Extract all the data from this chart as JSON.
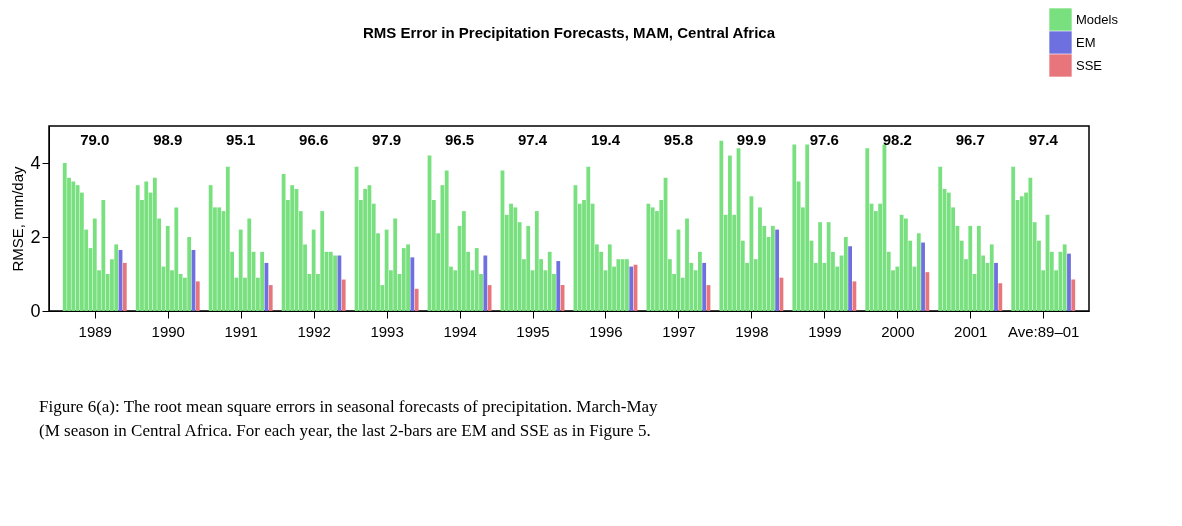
{
  "chart_data": {
    "type": "bar",
    "title": "RMS Error in Precipitation Forecasts, MAM, Central Africa",
    "ylabel": "RMSE, mm/day",
    "categories": [
      null,
      null,
      null,
      null,
      null,
      null,
      null,
      "1989",
      null,
      null,
      null,
      null,
      null,
      null,
      null,
      null,
      null,
      null,
      null,
      null,
      null,
      null,
      null,
      null,
      "1990",
      null,
      null,
      null,
      null,
      null,
      null,
      null,
      null,
      null,
      null,
      null,
      null,
      null,
      null,
      null,
      null,
      "1991",
      null,
      null,
      null,
      null,
      null,
      null,
      null,
      null,
      null,
      null,
      null,
      null,
      null,
      null,
      null,
      null,
      "1992",
      null,
      null,
      null,
      null,
      null,
      null,
      null,
      null,
      null,
      null,
      null,
      null,
      null,
      null,
      null,
      null,
      "1993",
      null,
      null,
      null,
      null,
      null,
      null,
      null,
      null,
      null,
      null,
      null,
      null,
      null,
      null,
      null,
      null,
      "1994",
      null,
      null,
      null,
      null,
      null,
      null,
      null,
      null,
      null,
      null,
      null,
      null,
      null,
      null,
      null,
      null,
      "1995",
      null,
      null,
      null,
      null,
      null,
      null,
      null,
      null,
      null,
      null,
      null,
      null,
      null,
      null,
      null,
      null,
      "1996",
      null,
      null,
      null,
      null,
      null,
      null,
      null,
      null,
      null,
      null,
      null,
      null,
      null,
      null,
      null,
      null,
      "1997",
      null,
      null,
      null,
      null,
      null,
      null,
      null,
      null,
      null,
      null,
      null,
      null,
      null,
      null,
      null,
      null,
      "1998",
      null,
      null,
      null,
      null,
      null,
      null,
      null,
      null,
      null,
      null,
      null,
      null,
      null,
      null,
      null,
      null,
      "1999",
      null,
      null,
      null,
      null,
      null,
      null,
      null,
      null,
      null,
      null,
      null,
      null,
      null,
      null,
      null,
      null,
      "2000",
      null,
      null,
      null,
      null,
      null,
      null,
      null,
      null,
      null,
      null,
      null,
      null,
      null,
      null,
      null,
      null,
      "2001",
      null,
      null,
      null,
      null,
      null,
      null,
      null,
      null,
      null,
      null,
      null,
      null,
      null,
      null,
      null,
      null,
      "Ave:89–01",
      null,
      null,
      null,
      null,
      null,
      null,
      null,
      null,
      null
    ],
    "series": [
      {
        "name": "Models",
        "color": "#78e07e",
        "values": [
          4.0,
          3.6,
          3.5,
          3.4,
          3.2,
          2.2,
          1.7,
          2.5,
          1.1,
          3.0,
          1.0,
          1.4,
          1.8,
          null,
          null,
          null,
          null,
          3.4,
          3.0,
          3.5,
          3.2,
          3.6,
          2.5,
          1.2,
          2.3,
          1.1,
          2.8,
          1.0,
          0.9,
          2.0,
          null,
          null,
          null,
          null,
          3.4,
          2.8,
          2.8,
          2.7,
          3.9,
          1.6,
          0.9,
          2.2,
          0.9,
          2.5,
          1.6,
          0.9,
          1.6,
          null,
          null,
          null,
          null,
          3.7,
          3.0,
          3.4,
          3.3,
          2.7,
          1.8,
          1.0,
          2.2,
          1.0,
          2.7,
          1.6,
          1.6,
          1.5,
          null,
          null,
          null,
          null,
          3.9,
          3.0,
          3.3,
          3.4,
          2.9,
          2.1,
          0.7,
          2.2,
          1.1,
          2.5,
          1.0,
          1.7,
          1.8,
          null,
          null,
          null,
          null,
          4.2,
          3.0,
          2.1,
          3.4,
          3.8,
          1.2,
          1.1,
          2.3,
          2.7,
          1.6,
          1.1,
          1.7,
          1.0,
          null,
          null,
          null,
          null,
          3.8,
          2.6,
          2.9,
          2.8,
          2.4,
          1.4,
          2.3,
          1.1,
          2.7,
          1.4,
          1.1,
          1.6,
          1.0,
          null,
          null,
          null,
          null,
          3.4,
          2.9,
          3.0,
          3.9,
          2.9,
          1.8,
          1.6,
          1.1,
          1.8,
          1.2,
          1.4,
          1.4,
          1.4,
          null,
          null,
          null,
          null,
          2.9,
          2.8,
          2.7,
          3.0,
          3.6,
          1.4,
          1.0,
          2.2,
          0.9,
          2.5,
          1.3,
          1.1,
          1.6,
          null,
          null,
          null,
          null,
          4.6,
          2.6,
          4.2,
          2.6,
          4.4,
          1.9,
          1.3,
          3.1,
          1.4,
          2.8,
          2.3,
          2.0,
          2.3,
          null,
          null,
          null,
          null,
          4.5,
          3.5,
          2.8,
          4.5,
          1.9,
          1.3,
          2.4,
          1.3,
          2.4,
          1.6,
          1.2,
          1.5,
          2.0,
          null,
          null,
          null,
          null,
          4.4,
          2.9,
          2.7,
          2.9,
          4.5,
          1.6,
          1.1,
          1.2,
          2.6,
          2.5,
          1.9,
          1.2,
          2.1,
          null,
          null,
          null,
          null,
          3.9,
          3.3,
          3.2,
          2.8,
          2.3,
          1.9,
          1.4,
          2.3,
          1.0,
          2.3,
          1.5,
          1.3,
          1.8,
          null,
          null,
          null,
          null,
          3.9,
          3.0,
          3.1,
          3.2,
          3.6,
          2.4,
          1.9,
          1.1,
          2.6,
          1.6,
          1.1,
          1.6,
          1.8,
          null,
          null,
          null,
          null
        ]
      },
      {
        "name": "EM",
        "color": "#6f70e0",
        "values": [
          null,
          null,
          null,
          null,
          null,
          null,
          null,
          null,
          null,
          null,
          null,
          null,
          null,
          1.65,
          null,
          null,
          null,
          null,
          null,
          null,
          null,
          null,
          null,
          null,
          null,
          null,
          null,
          null,
          null,
          null,
          1.65,
          null,
          null,
          null,
          null,
          null,
          null,
          null,
          null,
          null,
          null,
          null,
          null,
          null,
          null,
          null,
          null,
          1.3,
          null,
          null,
          null,
          null,
          null,
          null,
          null,
          null,
          null,
          null,
          null,
          null,
          null,
          null,
          null,
          null,
          1.5,
          null,
          null,
          null,
          null,
          null,
          null,
          null,
          null,
          null,
          null,
          null,
          null,
          null,
          null,
          null,
          null,
          1.45,
          null,
          null,
          null,
          null,
          null,
          null,
          null,
          null,
          null,
          null,
          null,
          null,
          null,
          null,
          null,
          null,
          1.5,
          null,
          null,
          null,
          null,
          null,
          null,
          null,
          null,
          null,
          null,
          null,
          null,
          null,
          null,
          null,
          null,
          1.35,
          null,
          null,
          null,
          null,
          null,
          null,
          null,
          null,
          null,
          null,
          null,
          null,
          null,
          null,
          null,
          null,
          1.2,
          null,
          null,
          null,
          null,
          null,
          null,
          null,
          null,
          null,
          null,
          null,
          null,
          null,
          null,
          null,
          null,
          1.3,
          null,
          null,
          null,
          null,
          null,
          null,
          null,
          null,
          null,
          null,
          null,
          null,
          null,
          null,
          null,
          null,
          2.2,
          null,
          null,
          null,
          null,
          null,
          null,
          null,
          null,
          null,
          null,
          null,
          null,
          null,
          null,
          null,
          null,
          1.75,
          null,
          null,
          null,
          null,
          null,
          null,
          null,
          null,
          null,
          null,
          null,
          null,
          null,
          null,
          null,
          null,
          1.85,
          null,
          null,
          null,
          null,
          null,
          null,
          null,
          null,
          null,
          null,
          null,
          null,
          null,
          null,
          null,
          null,
          1.3,
          null,
          null,
          null,
          null,
          null,
          null,
          null,
          null,
          null,
          null,
          null,
          null,
          null,
          null,
          null,
          null,
          1.55,
          null,
          null,
          null
        ]
      },
      {
        "name": "SSE",
        "color": "#e8757b",
        "values": [
          null,
          null,
          null,
          null,
          null,
          null,
          null,
          null,
          null,
          null,
          null,
          null,
          null,
          null,
          1.3,
          null,
          null,
          null,
          null,
          null,
          null,
          null,
          null,
          null,
          null,
          null,
          null,
          null,
          null,
          null,
          null,
          0.8,
          null,
          null,
          null,
          null,
          null,
          null,
          null,
          null,
          null,
          null,
          null,
          null,
          null,
          null,
          null,
          null,
          0.7,
          null,
          null,
          null,
          null,
          null,
          null,
          null,
          null,
          null,
          null,
          null,
          null,
          null,
          null,
          null,
          null,
          0.85,
          null,
          null,
          null,
          null,
          null,
          null,
          null,
          null,
          null,
          null,
          null,
          null,
          null,
          null,
          null,
          null,
          0.6,
          null,
          null,
          null,
          null,
          null,
          null,
          null,
          null,
          null,
          null,
          null,
          null,
          null,
          null,
          null,
          null,
          0.7,
          null,
          null,
          null,
          null,
          null,
          null,
          null,
          null,
          null,
          null,
          null,
          null,
          null,
          null,
          null,
          null,
          0.7,
          null,
          null,
          null,
          null,
          null,
          null,
          null,
          null,
          null,
          null,
          null,
          null,
          null,
          null,
          null,
          null,
          1.25,
          null,
          null,
          null,
          null,
          null,
          null,
          null,
          null,
          null,
          null,
          null,
          null,
          null,
          null,
          null,
          null,
          0.7,
          null,
          null,
          null,
          null,
          null,
          null,
          null,
          null,
          null,
          null,
          null,
          null,
          null,
          null,
          null,
          null,
          0.9,
          null,
          null,
          null,
          null,
          null,
          null,
          null,
          null,
          null,
          null,
          null,
          null,
          null,
          null,
          null,
          null,
          0.8,
          null,
          null,
          null,
          null,
          null,
          null,
          null,
          null,
          null,
          null,
          null,
          null,
          null,
          null,
          null,
          null,
          1.05,
          null,
          null,
          null,
          null,
          null,
          null,
          null,
          null,
          null,
          null,
          null,
          null,
          null,
          null,
          null,
          null,
          0.75,
          null,
          null,
          null,
          null,
          null,
          null,
          null,
          null,
          null,
          null,
          null,
          null,
          null,
          null,
          null,
          null,
          0.85,
          null,
          null
        ]
      }
    ],
    "ylim": [
      0,
      5
    ],
    "yticks": [
      0,
      2,
      4
    ],
    "legend": "top right",
    "annotations": [
      "79.0",
      "98.9",
      "95.1",
      "96.6",
      "97.9",
      "96.5",
      "97.4",
      "19.4",
      "95.8",
      "99.9",
      "97.6",
      "98.2",
      "96.7",
      "97.4",
      "Figure 6(a): The root mean square errors in seasonal forecasts of precipitation. March-May (M season in Central Africa. For each year, the last 2-bars are EM and SSE as in Figure 5."
    ]
  }
}
